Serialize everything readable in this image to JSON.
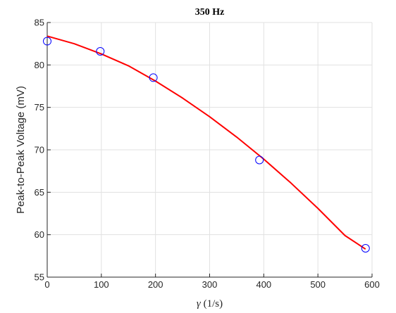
{
  "chart_data": {
    "type": "scatter",
    "title": "350 Hz",
    "xlabel_symbol": "γ",
    "xlabel_unit": " (1/s)",
    "ylabel": "Peak-to-Peak Voltage (mV)",
    "xlim": [
      0,
      600
    ],
    "ylim": [
      55,
      85
    ],
    "xticks": [
      0,
      100,
      200,
      300,
      400,
      500,
      600
    ],
    "yticks": [
      55,
      60,
      65,
      70,
      75,
      80,
      85
    ],
    "grid": true,
    "series": [
      {
        "kind": "markers",
        "marker": "circle",
        "color": "#0000ff",
        "x": [
          0,
          98,
          196,
          392,
          588
        ],
        "y": [
          82.8,
          81.6,
          78.5,
          68.8,
          58.4
        ]
      },
      {
        "kind": "fit-line",
        "color": "#ff0000",
        "x": [
          0,
          50,
          100,
          150,
          200,
          250,
          300,
          350,
          400,
          450,
          500,
          550,
          588
        ],
        "y": [
          83.4,
          82.5,
          81.3,
          79.9,
          78.1,
          76.1,
          73.9,
          71.5,
          68.9,
          66.1,
          63.1,
          59.9,
          58.3
        ]
      }
    ]
  }
}
